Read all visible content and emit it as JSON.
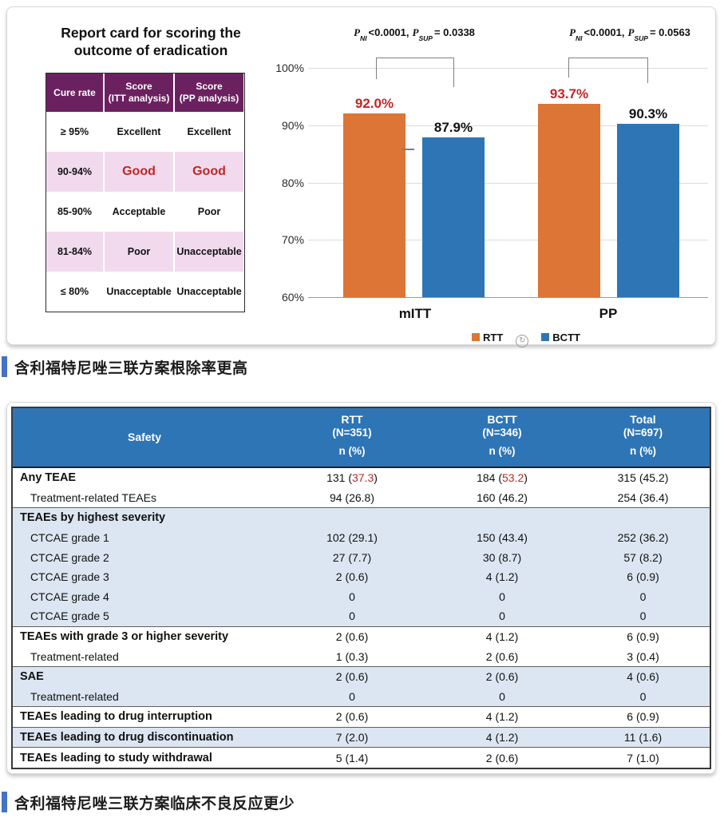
{
  "colors": {
    "rtt_orange": "#DC7535",
    "bctt_blue": "#2E75B6",
    "emphasis_red": "#C22524",
    "report_card_header_purple": "#6B2160",
    "report_card_pink_row": "#F2DAEE",
    "safety_header_blue": "#2E75B6",
    "safety_band_blue": "#DCE6F2",
    "caption_bar_blue": "#4472C4"
  },
  "report_card": {
    "title": "Report card for scoring the outcome of eradication",
    "header": [
      "Cure rate",
      "Score\n(ITT analysis)",
      "Score\n(PP analysis)"
    ],
    "rows": [
      {
        "cells": [
          "≥ 95%",
          "Excellent",
          "Excellent"
        ],
        "pink": false,
        "red": false
      },
      {
        "cells": [
          "90-94%",
          "Good",
          "Good"
        ],
        "pink": true,
        "red": true
      },
      {
        "cells": [
          "85-90%",
          "Acceptable",
          "Poor"
        ],
        "pink": false,
        "red": false
      },
      {
        "cells": [
          "81-84%",
          "Poor",
          "Unacceptable"
        ],
        "pink": true,
        "red": false
      },
      {
        "cells": [
          "≤ 80%",
          "Unacceptable",
          "Unacceptable"
        ],
        "pink": false,
        "red": false
      }
    ]
  },
  "chart_data": {
    "type": "bar",
    "title": "",
    "categories": [
      "mITT",
      "PP"
    ],
    "series": [
      {
        "name": "RTT",
        "color": "#DC7535",
        "values": [
          92.0,
          93.7
        ],
        "labels": [
          "92.0%",
          "93.7%"
        ],
        "label_color": "#C22524"
      },
      {
        "name": "BCTT",
        "color": "#2E75B6",
        "values": [
          87.9,
          90.3
        ],
        "labels": [
          "87.9%",
          "90.3%"
        ],
        "label_color": "#111111"
      }
    ],
    "ylim": [
      60,
      100
    ],
    "yticks": [
      "100%",
      "90%",
      "80%",
      "70%",
      "60%"
    ],
    "grid": true,
    "legend_position": "bottom",
    "ni_margin_tick_value": 85.6,
    "annotations": [
      {
        "p1": "P",
        "p1sub": "NI",
        "p1val": "<0.0001,",
        "p2": "P",
        "p2sub": "SUP",
        "p2val": "= 0.0338"
      },
      {
        "p1": "P",
        "p1sub": "NI",
        "p1val": "<0.0001,",
        "p2": "P",
        "p2sub": "SUP",
        "p2val": "= 0.0563"
      }
    ],
    "watermark_icon": "refresh-icon"
  },
  "captions": [
    {
      "text": "含利福特尼唑三联方案根除率更高"
    },
    {
      "text": "含利福特尼唑三联方案临床不良反应更少"
    }
  ],
  "safety_table": {
    "header": {
      "col0": "Safety",
      "groups": [
        {
          "name": "RTT",
          "n": "(N=351)",
          "sub": "n (%)"
        },
        {
          "name": "BCTT",
          "n": "(N=346)",
          "sub": "n (%)"
        },
        {
          "name": "Total",
          "n": "(N=697)",
          "sub": "n (%)"
        }
      ]
    },
    "rows": [
      {
        "label": "Any TEAE",
        "bold": true,
        "indent": false,
        "band": false,
        "line": false,
        "cells": [
          {
            "pre": "131 (",
            "red": "37.3",
            "post": ")"
          },
          {
            "pre": "184 (",
            "red": "53.2",
            "post": ")"
          },
          "315 (45.2)"
        ]
      },
      {
        "label": "Treatment-related TEAEs",
        "bold": false,
        "indent": true,
        "band": false,
        "line": false,
        "cells": [
          "94 (26.8)",
          "160 (46.2)",
          "254 (36.4)"
        ]
      },
      {
        "label": "TEAEs by highest severity",
        "bold": true,
        "indent": false,
        "band": true,
        "line": true,
        "cells": [
          "",
          "",
          ""
        ]
      },
      {
        "label": "CTCAE grade 1",
        "bold": false,
        "indent": true,
        "band": true,
        "line": false,
        "cells": [
          "102 (29.1)",
          "150 (43.4)",
          "252 (36.2)"
        ]
      },
      {
        "label": "CTCAE grade 2",
        "bold": false,
        "indent": true,
        "band": true,
        "line": false,
        "cells": [
          "27 (7.7)",
          "30 (8.7)",
          "57 (8.2)"
        ]
      },
      {
        "label": "CTCAE grade 3",
        "bold": false,
        "indent": true,
        "band": true,
        "line": false,
        "cells": [
          "2 (0.6)",
          "4 (1.2)",
          "6 (0.9)"
        ]
      },
      {
        "label": "CTCAE grade 4",
        "bold": false,
        "indent": true,
        "band": true,
        "line": false,
        "cells": [
          "0",
          "0",
          "0"
        ]
      },
      {
        "label": "CTCAE grade 5",
        "bold": false,
        "indent": true,
        "band": true,
        "line": false,
        "cells": [
          "0",
          "0",
          "0"
        ]
      },
      {
        "label": "TEAEs with grade 3 or higher severity",
        "bold": true,
        "indent": false,
        "band": false,
        "line": true,
        "cells": [
          "2 (0.6)",
          "4 (1.2)",
          "6 (0.9)"
        ]
      },
      {
        "label": "Treatment-related",
        "bold": false,
        "indent": true,
        "band": false,
        "line": false,
        "cells": [
          "1 (0.3)",
          "2 (0.6)",
          "3 (0.4)"
        ]
      },
      {
        "label": "SAE",
        "bold": true,
        "indent": false,
        "band": true,
        "line": true,
        "cells": [
          "2 (0.6)",
          "2 (0.6)",
          "4 (0.6)"
        ]
      },
      {
        "label": "Treatment-related",
        "bold": false,
        "indent": true,
        "band": true,
        "line": false,
        "cells": [
          "0",
          "0",
          "0"
        ]
      },
      {
        "label": "TEAEs leading to drug interruption",
        "bold": true,
        "indent": false,
        "band": false,
        "line": true,
        "cells": [
          "2 (0.6)",
          "4 (1.2)",
          "6 (0.9)"
        ]
      },
      {
        "label": "TEAEs leading to drug discontinuation",
        "bold": true,
        "indent": false,
        "band": true,
        "line": true,
        "cells": [
          "7 (2.0)",
          "4 (1.2)",
          "11 (1.6)"
        ]
      },
      {
        "label": "TEAEs leading to study withdrawal",
        "bold": true,
        "indent": false,
        "band": false,
        "line": true,
        "cells": [
          "5 (1.4)",
          "2 (0.6)",
          "7 (1.0)"
        ]
      }
    ]
  }
}
